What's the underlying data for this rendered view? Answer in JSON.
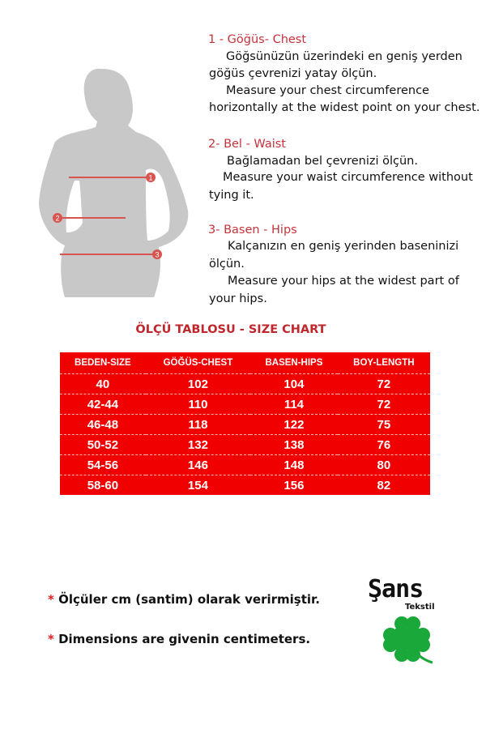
{
  "instructions": [
    {
      "heading": "1 - Göğüs- Chest",
      "lines": [
        "Göğsünüzün üzerindeki en geniş yerden",
        "göğüs çevrenizi yatay ölçün.",
        "Measure your chest circumference",
        "horizontally at the widest point on your chest."
      ]
    },
    {
      "heading": "2- Bel - Waist",
      "lines": [
        "Bağlamadan bel çevrenizi ölçün.",
        "Measure your waist circumference without",
        "tying it."
      ]
    },
    {
      "heading": "3- Basen - Hips",
      "lines": [
        "Kalçanızın en geniş yerinden baseninizi",
        "ölçün.",
        "Measure your hips at the widest part of",
        "your hips."
      ]
    }
  ],
  "figure": {
    "markers": [
      "1",
      "2",
      "3"
    ],
    "silhouette_color": "#c8c8c8",
    "line_color": "#d9534f"
  },
  "size_chart": {
    "title": "ÖLÇÜ TABLOSU - SIZE CHART",
    "headers": [
      "BEDEN-SIZE",
      "GÖĞÜS-CHEST",
      "BASEN-HIPS",
      "BOY-LENGTH"
    ],
    "rows": [
      [
        "40",
        "102",
        "104",
        "72"
      ],
      [
        "42-44",
        "110",
        "114",
        "72"
      ],
      [
        "46-48",
        "118",
        "122",
        "75"
      ],
      [
        "50-52",
        "132",
        "138",
        "76"
      ],
      [
        "54-56",
        "146",
        "148",
        "80"
      ],
      [
        "58-60",
        "154",
        "156",
        "82"
      ]
    ],
    "bg_color": "#f00000"
  },
  "notes": [
    {
      "star": "*",
      "text": "Ölçüler  cm (santim) olarak verirmiştir."
    },
    {
      "star": "*",
      "text": "Dimensions are givenin centimeters."
    }
  ],
  "logo": {
    "name": "Şans",
    "sub": "Tekstil",
    "icon": "four-leaf-clover-icon",
    "color": "#1aa83a"
  }
}
